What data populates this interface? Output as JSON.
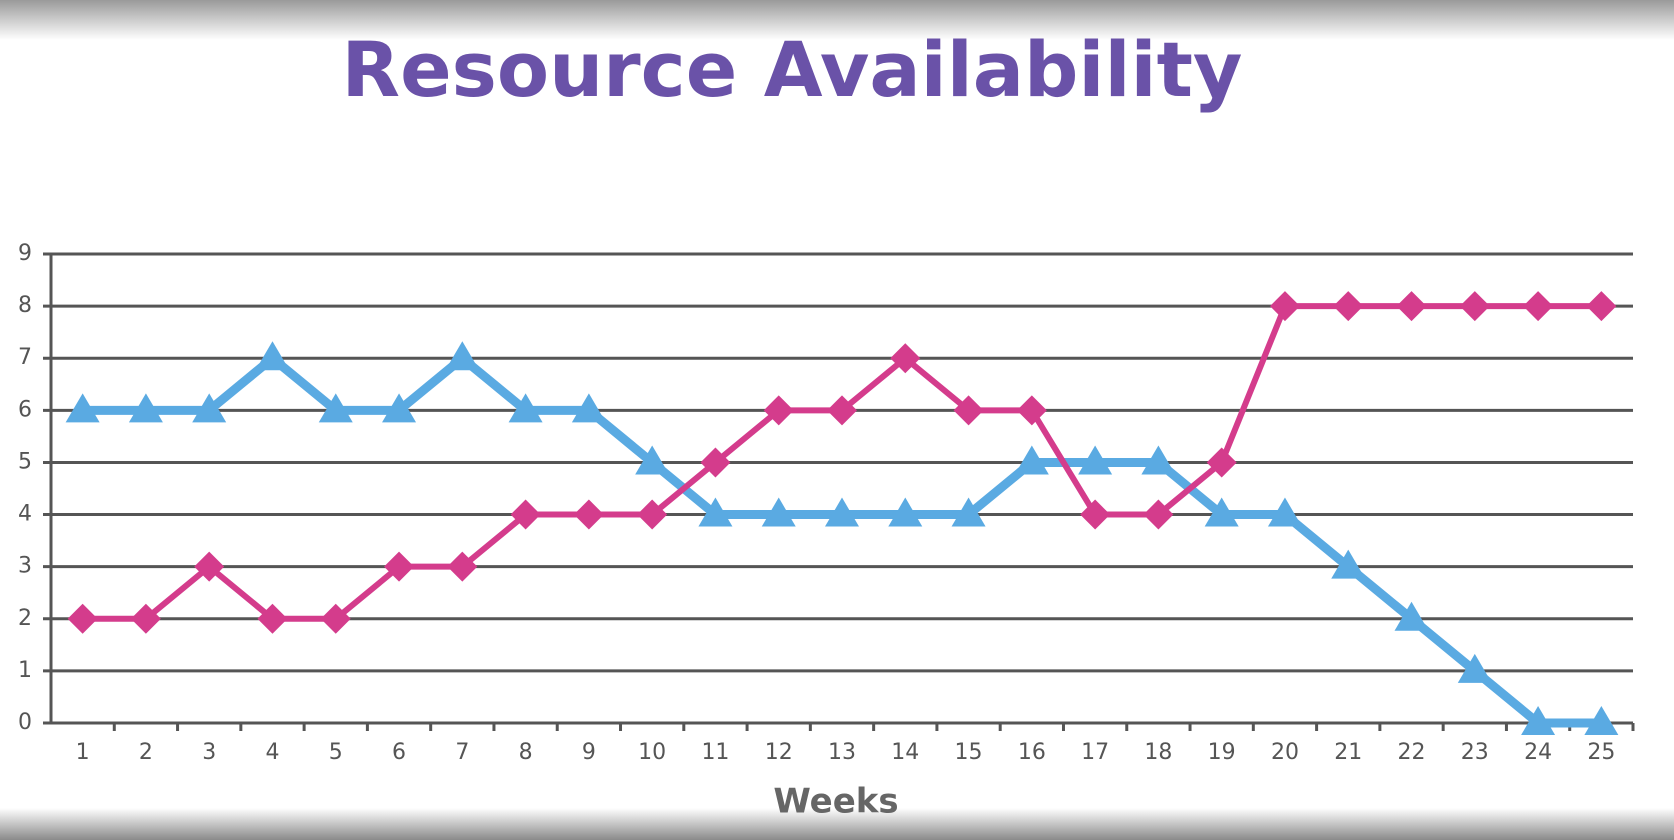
{
  "chart_data": {
    "type": "line",
    "title": "Resource Availability",
    "x_label": "Weeks",
    "categories": [
      "1",
      "2",
      "3",
      "4",
      "5",
      "6",
      "7",
      "8",
      "9",
      "10",
      "11",
      "12",
      "13",
      "14",
      "15",
      "16",
      "17",
      "18",
      "19",
      "20",
      "21",
      "22",
      "23",
      "24",
      "25"
    ],
    "series": [
      {
        "color": "#5aaae2",
        "marker": "triangle",
        "values": [
          6,
          6,
          6,
          7,
          6,
          6,
          7,
          6,
          6,
          5,
          4,
          4,
          4,
          4,
          4,
          5,
          5,
          5,
          4,
          4,
          3,
          2,
          1,
          0,
          0
        ]
      },
      {
        "color": "#d43c8c",
        "marker": "diamond",
        "values": [
          2,
          2,
          3,
          2,
          2,
          3,
          3,
          4,
          4,
          4,
          5,
          6,
          6,
          7,
          6,
          6,
          4,
          4,
          5,
          8,
          8,
          8,
          8,
          8,
          8
        ]
      }
    ],
    "ylim": [
      0,
      9
    ],
    "yticks": [
      0,
      1,
      2,
      3,
      4,
      5,
      6,
      7,
      8,
      9
    ],
    "grid": true
  }
}
